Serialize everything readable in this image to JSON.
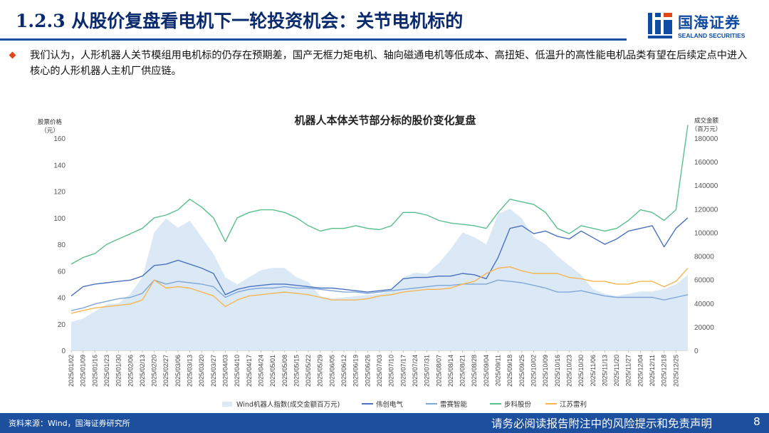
{
  "header": {
    "title": "1.2.3 从股价复盘看电机下一轮投资机会：关节电机标的",
    "logo_cn": "国海证券",
    "logo_en": "SEALAND SECURITIES"
  },
  "body": {
    "paragraph": "我们认为，人形机器人关节模组用电机标的仍存在预期差，国产无框力矩电机、轴向磁通电机等低成本、高扭矩、低温升的高性能电机品类有望在后续定点中进入核心的人形机器人主机厂供应链。"
  },
  "footer": {
    "source": "资料来源：Wind，国海证券研究所",
    "disclaimer": "请务必阅读报告附注中的风险提示和免责声明",
    "page": "8"
  },
  "colors": {
    "brand": "#1d4f9f",
    "title": "#0a2a6e",
    "bullet": "#e0481b"
  },
  "chart_data": {
    "type": "line",
    "title": "机器人本体关节部分标的股价变化复盘",
    "ylabel_left": "股票价格\n（元）",
    "ylabel_right": "成交金额\n（百万元）",
    "ylim_left": [
      0,
      160
    ],
    "yticks_left": [
      0,
      20,
      40,
      60,
      80,
      100,
      120,
      140,
      160
    ],
    "ylim_right": [
      0,
      180000
    ],
    "yticks_right": [
      0,
      20000,
      40000,
      60000,
      80000,
      100000,
      120000,
      140000,
      160000,
      180000
    ],
    "x_tick_labels": [
      "2025/01/02",
      "2025/01/09",
      "2025/01/16",
      "2025/01/23",
      "2025/01/30",
      "2025/02/06",
      "2025/02/13",
      "2025/02/20",
      "2025/02/27",
      "2025/03/06",
      "2025/03/13",
      "2025/03/20",
      "2025/03/27",
      "2025/04/03",
      "2025/04/10",
      "2025/04/17",
      "2025/04/24",
      "2025/05/01",
      "2025/05/08",
      "2025/05/15",
      "2025/05/22",
      "2025/05/29",
      "2025/06/05",
      "2025/06/12",
      "2025/06/19",
      "2025/06/26",
      "2025/07/03",
      "2025/07/10",
      "2025/07/17",
      "2025/07/24",
      "2025/07/31",
      "2025/08/07",
      "2025/08/14",
      "2025/08/21",
      "2025/08/28",
      "2025/09/04",
      "2025/09/11",
      "2025/09/18",
      "2025/09/25",
      "2025/10/02",
      "2025/10/09",
      "2025/10/16",
      "2025/10/23",
      "2025/10/30",
      "2025/11/06",
      "2025/11/13",
      "2025/11/20",
      "2025/11/27",
      "2025/12/04",
      "2025/12/11",
      "2025/12/18",
      "2025/12/25"
    ],
    "x": [
      "2025/01/02",
      "2025/01/09",
      "2025/01/16",
      "2025/01/23",
      "2025/01/30",
      "2025/02/06",
      "2025/02/13",
      "2025/02/20",
      "2025/02/27",
      "2025/03/06",
      "2025/03/13",
      "2025/03/20",
      "2025/03/27",
      "2025/04/03",
      "2025/04/10",
      "2025/04/17",
      "2025/04/24",
      "2025/05/01",
      "2025/05/08",
      "2025/05/15",
      "2025/05/22",
      "2025/05/29",
      "2025/06/05",
      "2025/06/12",
      "2025/06/19",
      "2025/06/26",
      "2025/07/03",
      "2025/07/10",
      "2025/07/17",
      "2025/07/24",
      "2025/07/31",
      "2025/08/07",
      "2025/08/14",
      "2025/08/21",
      "2025/08/28",
      "2025/09/04",
      "2025/09/11",
      "2025/09/18",
      "2025/09/25",
      "2025/10/02",
      "2025/10/09",
      "2025/10/16",
      "2025/10/23",
      "2025/10/30",
      "2025/11/06",
      "2025/11/13",
      "2025/11/20",
      "2025/11/27",
      "2025/12/04",
      "2025/12/11",
      "2025/12/18",
      "2025/12/25",
      "2025/12/31"
    ],
    "series": [
      {
        "name": "Wind机器人指数(成交金额百万元)",
        "axis": "right",
        "kind": "area",
        "color": "#dbe9f6",
        "values": [
          24000,
          27000,
          33000,
          39000,
          40000,
          48000,
          62000,
          100000,
          112000,
          104000,
          110000,
          96000,
          82000,
          62000,
          56000,
          62000,
          68000,
          70000,
          70000,
          62000,
          58000,
          46000,
          44000,
          45000,
          46000,
          47000,
          48000,
          50000,
          62000,
          66000,
          65000,
          74000,
          86000,
          100000,
          96000,
          90000,
          116000,
          120000,
          112000,
          96000,
          90000,
          80000,
          72000,
          64000,
          52000,
          48000,
          46000,
          48000,
          50000,
          50000,
          52000,
          56000,
          64000
        ]
      },
      {
        "name": "伟创电气",
        "axis": "left",
        "kind": "line",
        "color": "#4a72c0",
        "values": [
          41,
          48,
          50,
          51,
          52,
          53,
          56,
          64,
          65,
          68,
          65,
          62,
          58,
          42,
          46,
          48,
          49,
          50,
          50,
          49,
          48,
          47,
          47,
          46,
          45,
          44,
          45,
          46,
          54,
          55,
          55,
          56,
          56,
          58,
          57,
          54,
          70,
          92,
          94,
          88,
          90,
          86,
          84,
          90,
          85,
          80,
          84,
          90,
          92,
          94,
          78,
          92,
          100
        ]
      },
      {
        "name": "雷赛智能",
        "axis": "left",
        "kind": "line",
        "color": "#7fa7d8",
        "values": [
          30,
          32,
          35,
          37,
          39,
          40,
          43,
          53,
          50,
          52,
          51,
          50,
          48,
          40,
          44,
          46,
          47,
          47,
          48,
          47,
          47,
          46,
          45,
          44,
          44,
          43,
          44,
          45,
          46,
          47,
          48,
          49,
          49,
          50,
          50,
          50,
          53,
          52,
          51,
          49,
          47,
          44,
          44,
          45,
          43,
          41,
          40,
          40,
          40,
          40,
          38,
          40,
          42
        ]
      },
      {
        "name": "步科股份",
        "axis": "left",
        "kind": "line",
        "color": "#59bf8c",
        "values": [
          65,
          70,
          73,
          80,
          84,
          88,
          92,
          100,
          102,
          106,
          114,
          108,
          100,
          82,
          100,
          104,
          106,
          106,
          104,
          100,
          94,
          90,
          92,
          92,
          94,
          92,
          91,
          94,
          104,
          104,
          102,
          98,
          96,
          95,
          94,
          92,
          104,
          114,
          112,
          110,
          104,
          92,
          88,
          94,
          92,
          90,
          92,
          98,
          106,
          104,
          98,
          106,
          170
        ]
      },
      {
        "name": "江苏雷利",
        "axis": "left",
        "kind": "line",
        "color": "#f5b552",
        "values": [
          28,
          30,
          32,
          33,
          34,
          35,
          38,
          53,
          47,
          48,
          47,
          44,
          41,
          33,
          38,
          41,
          42,
          43,
          44,
          43,
          42,
          40,
          38,
          38,
          38,
          39,
          41,
          42,
          44,
          45,
          46,
          46,
          47,
          50,
          52,
          58,
          62,
          63,
          60,
          58,
          58,
          58,
          55,
          54,
          52,
          52,
          50,
          50,
          52,
          52,
          48,
          52,
          62
        ]
      }
    ]
  }
}
